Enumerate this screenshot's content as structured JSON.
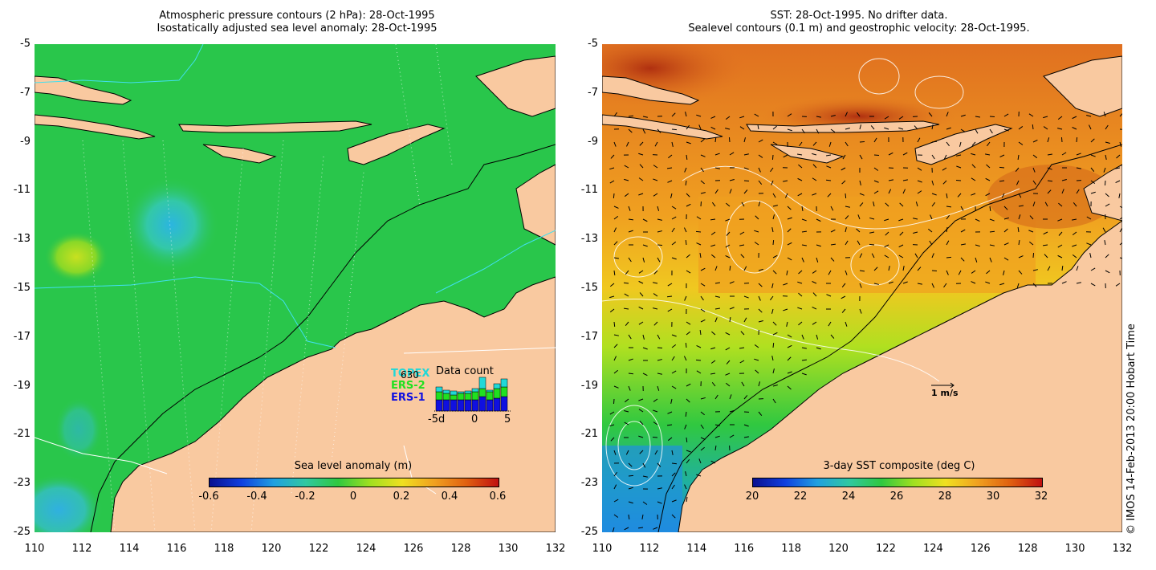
{
  "left_panel": {
    "title_line1": "Atmospheric pressure contours (2 hPa): 28-Oct-1995",
    "title_line2": "Isostatically adjusted sea level anomaly: 28-Oct-1995",
    "colorbar": {
      "label": "Sea level anomaly (m)",
      "ticks": [
        "-0.6",
        "-0.4",
        "-0.2",
        "0",
        "0.2",
        "0.4",
        "0.6"
      ]
    },
    "legend": {
      "count_value": "630",
      "series": [
        {
          "name": "TOPEX",
          "color": "#20d8d8"
        },
        {
          "name": "ERS-2",
          "color": "#20e020"
        },
        {
          "name": "ERS-1",
          "color": "#1010e0"
        }
      ],
      "data_count_title": "Data count",
      "x_ticks": [
        "-5d",
        "0",
        "5"
      ]
    }
  },
  "right_panel": {
    "title_line1": "SST: 28-Oct-1995. No drifter data.",
    "title_line2": "Sealevel contours (0.1 m) and geostrophic velocity: 28-Oct-1995.",
    "colorbar": {
      "label": "3-day SST composite (deg C)",
      "ticks": [
        "20",
        "22",
        "24",
        "26",
        "28",
        "30",
        "32"
      ]
    },
    "velocity_scale": "1 m/s"
  },
  "axes": {
    "y_ticks": [
      "-5",
      "-7",
      "-9",
      "-11",
      "-13",
      "-15",
      "-17",
      "-19",
      "-21",
      "-23",
      "-25"
    ],
    "x_ticks": [
      "110",
      "112",
      "114",
      "116",
      "118",
      "120",
      "122",
      "124",
      "126",
      "128",
      "130",
      "132"
    ]
  },
  "credit": "© IMOS 14-Feb-2013 20:00 Hobart Time",
  "colors": {
    "land": "#f9c9a0",
    "sea_green": "#2ccb3a",
    "sst_orange": "#f0a020"
  }
}
